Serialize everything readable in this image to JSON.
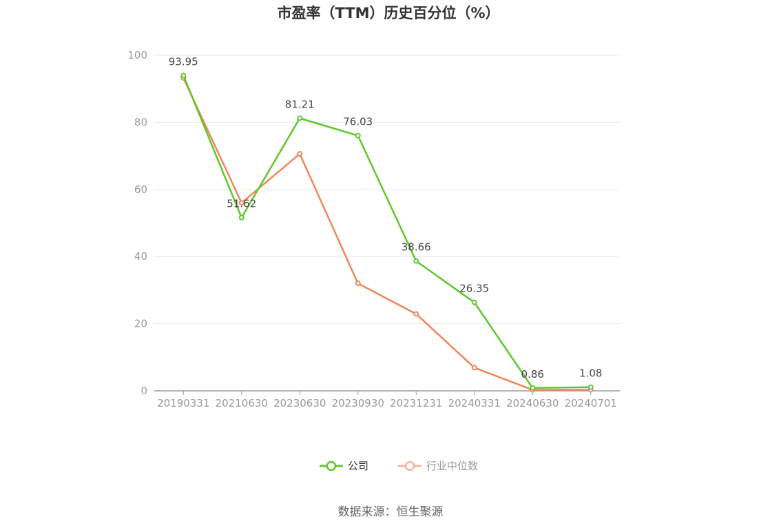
{
  "chart_data": {
    "type": "line",
    "title": "市盈率（TTM）历史百分位（%）",
    "categories": [
      "20190331",
      "20210630",
      "20230630",
      "20230930",
      "20231231",
      "20240331",
      "20240630",
      "20240701"
    ],
    "series": [
      {
        "name": "公司",
        "values": [
          93.95,
          51.62,
          81.21,
          76.03,
          38.66,
          26.35,
          0.86,
          1.08
        ],
        "color": "#5cc82a",
        "show_labels": true
      },
      {
        "name": "行业中位数",
        "values": [
          93.2,
          56.0,
          70.6,
          32.0,
          22.9,
          6.9,
          0.3,
          0.3
        ],
        "color": "#f0865a",
        "legend_color": "#f7b59b",
        "show_labels": false
      }
    ],
    "y_ticks": [
      "0",
      "20",
      "40",
      "60",
      "80",
      "100"
    ],
    "ylim": [
      0,
      100
    ],
    "xlabel": "",
    "ylabel": "",
    "grid": true,
    "legend_position": "bottom-center",
    "source": "数据来源：恒生聚源"
  },
  "colors": {
    "grid": "#e6e8ef",
    "axis": "#999999",
    "legend_text_active": "#333333",
    "legend_text_muted": "#999999"
  }
}
